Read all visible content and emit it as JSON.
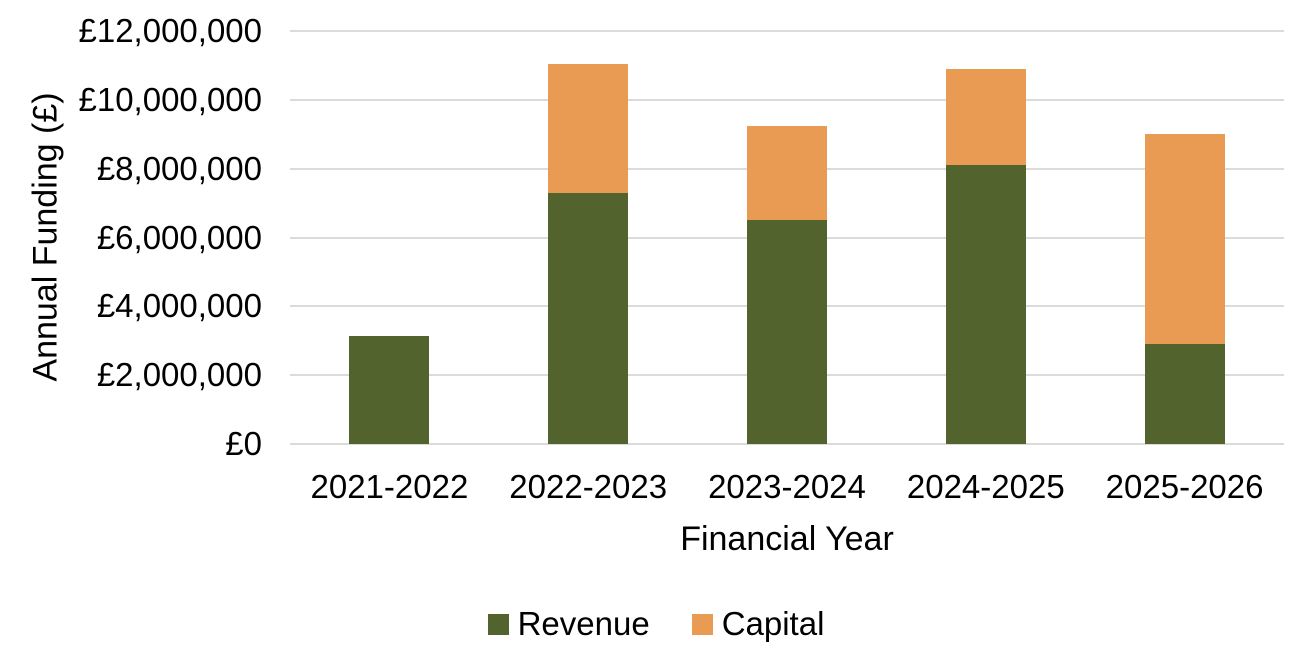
{
  "chart_data": {
    "type": "bar",
    "variant": "stacked",
    "title": "",
    "categories": [
      "2021-2022",
      "2022-2023",
      "2023-2024",
      "2024-2025",
      "2025-2026"
    ],
    "series": [
      {
        "name": "Revenue",
        "color": "#53632E",
        "values": [
          3150000,
          7300000,
          6500000,
          8100000,
          2900000
        ]
      },
      {
        "name": "Capital",
        "color": "#E99A53",
        "values": [
          0,
          3750000,
          2750000,
          2800000,
          6100000
        ]
      }
    ],
    "xlabel": "Financial Year",
    "ylabel": "Annual Funding (£)",
    "ylim": [
      0,
      12000000
    ],
    "ytick_step": 2000000,
    "ytick_labels": [
      "£0",
      "£2,000,000",
      "£4,000,000",
      "£6,000,000",
      "£8,000,000",
      "£10,000,000",
      "£12,000,000"
    ],
    "grid": "horizontal",
    "gridline_color": "#DBDBDB",
    "text_color": "#000000",
    "legend_position": "bottom"
  }
}
